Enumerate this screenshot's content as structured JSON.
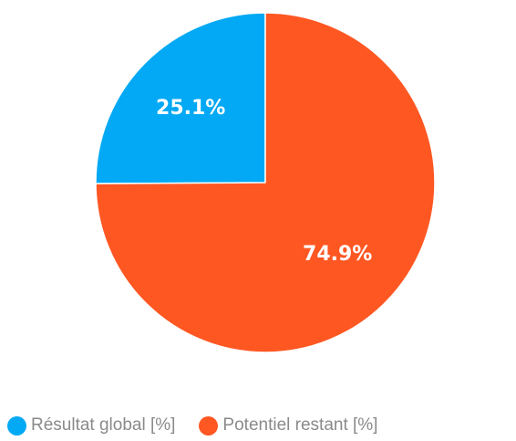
{
  "chart_data": {
    "type": "pie",
    "title": "",
    "slices": [
      {
        "name": "Résultat global [%]",
        "value": 25.1,
        "label": "25.1%",
        "color": "#03A9F4"
      },
      {
        "name": "Potentiel restant [%]",
        "value": 74.9,
        "label": "74.9%",
        "color": "#FF5722"
      }
    ],
    "start_angle": "12 o'clock",
    "direction": "counter-clockwise",
    "legend_position": "bottom"
  }
}
